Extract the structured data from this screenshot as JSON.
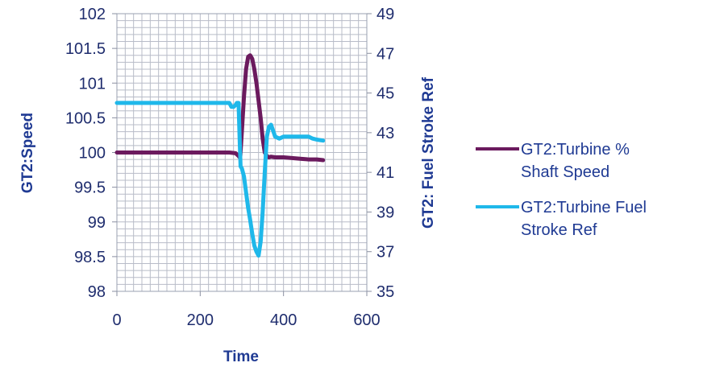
{
  "chart_data": {
    "type": "line",
    "title": "",
    "xlabel": "Time",
    "ylabel_left": "GT2:Speed",
    "ylabel_right": "GT2: Fuel  Stroke Ref",
    "xlim": [
      0,
      600
    ],
    "ylim_left": [
      98,
      102
    ],
    "ylim_right": [
      35,
      49
    ],
    "x_ticks": [
      "0",
      "200",
      "400",
      "600"
    ],
    "y_left_ticks": [
      "98",
      "98.5",
      "99",
      "99.5",
      "100",
      "100.5",
      "101",
      "101.5",
      "102"
    ],
    "y_right_ticks": [
      "35",
      "37",
      "39",
      "41",
      "43",
      "45",
      "47",
      "49"
    ],
    "grid": true,
    "legend_position": "right",
    "series": [
      {
        "name": "GT2:Turbine % Shaft Speed",
        "axis": "left",
        "color": "#6b1a5e",
        "x": [
          0,
          100,
          200,
          270,
          285,
          292,
          296,
          300,
          305,
          310,
          315,
          320,
          325,
          330,
          335,
          340,
          345,
          350,
          355,
          360,
          365,
          370,
          380,
          400,
          420,
          440,
          460,
          480,
          495
        ],
        "y": [
          100.0,
          100.0,
          100.0,
          100.0,
          99.99,
          99.95,
          99.92,
          100.3,
          100.8,
          101.2,
          101.38,
          101.4,
          101.35,
          101.2,
          101.0,
          100.75,
          100.5,
          100.2,
          100.0,
          99.95,
          99.93,
          99.94,
          99.93,
          99.93,
          99.92,
          99.91,
          99.9,
          99.9,
          99.89
        ]
      },
      {
        "name": "GT2:Turbine Fuel Stroke Ref",
        "axis": "right",
        "color": "#1fb8ea",
        "x": [
          0,
          100,
          200,
          270,
          275,
          280,
          285,
          288,
          292,
          295,
          297,
          300,
          305,
          310,
          315,
          320,
          325,
          330,
          335,
          340,
          345,
          350,
          355,
          360,
          365,
          370,
          375,
          380,
          390,
          400,
          420,
          440,
          460,
          470,
          480,
          495
        ],
        "y": [
          44.5,
          44.5,
          44.5,
          44.5,
          44.3,
          44.3,
          44.4,
          44.5,
          44.5,
          42.5,
          41.3,
          41.2,
          40.8,
          40.0,
          39.2,
          38.6,
          37.9,
          37.3,
          37.0,
          36.8,
          37.5,
          39.0,
          41.0,
          42.8,
          43.3,
          43.4,
          43.1,
          42.8,
          42.7,
          42.8,
          42.8,
          42.8,
          42.8,
          42.7,
          42.65,
          42.6
        ]
      }
    ]
  }
}
